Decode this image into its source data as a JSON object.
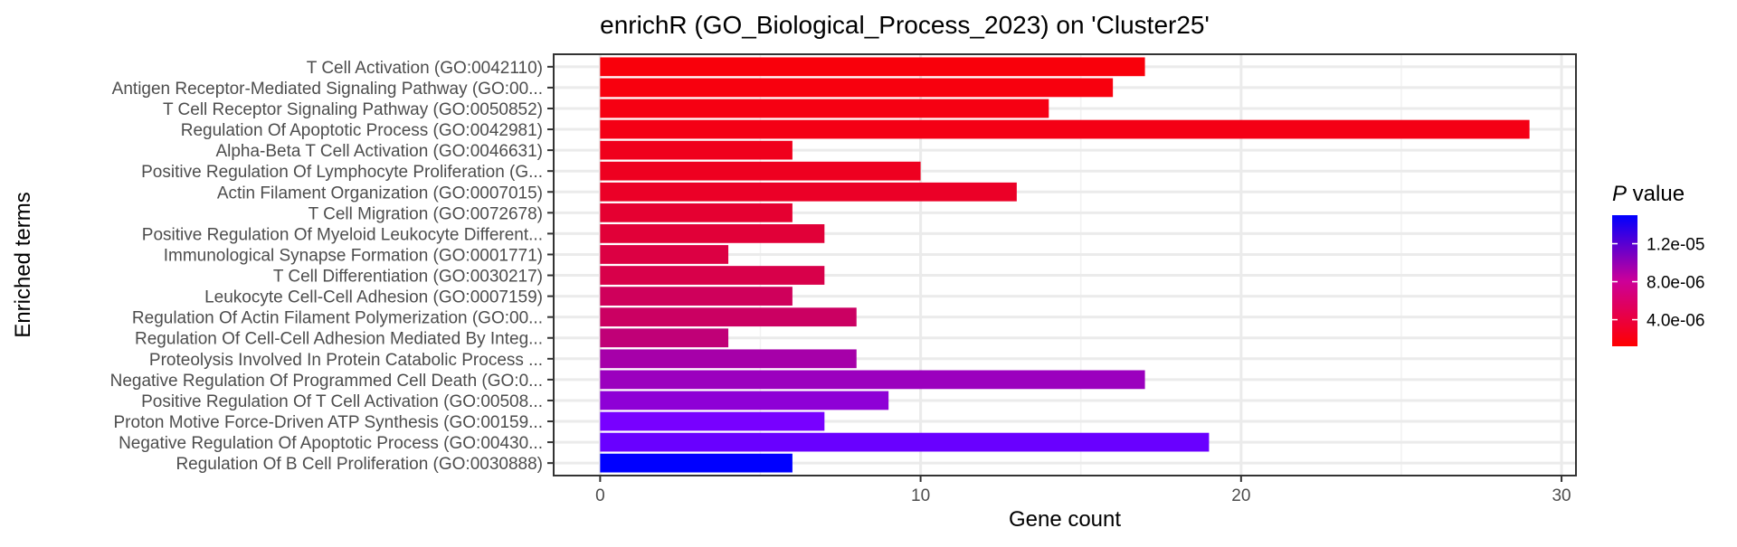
{
  "chart_data": {
    "type": "bar",
    "orientation": "horizontal",
    "title": "enrichR (GO_Biological_Process_2023) on 'Cluster25'",
    "xlabel": "Gene count",
    "ylabel": "Enriched terms",
    "xlim": [
      -1.45,
      30.45
    ],
    "xticks": [
      0,
      10,
      20,
      30
    ],
    "grid": true,
    "legend": {
      "title_italic": "P",
      "title_rest": " value",
      "placement": "right",
      "type": "colorbar",
      "low_color": "#FF0000",
      "high_color": "#0000FF",
      "range": [
        1.2e-06,
        1.5e-05
      ],
      "tick_values": [
        4e-06,
        8e-06,
        1.2e-05
      ],
      "tick_labels": [
        "4.0e-06",
        "8.0e-06",
        "1.2e-05"
      ]
    },
    "categories": [
      "T Cell Activation (GO:0042110)",
      "Antigen Receptor-Mediated Signaling Pathway (GO:00...",
      "T Cell Receptor Signaling Pathway (GO:0050852)",
      "Regulation Of Apoptotic Process (GO:0042981)",
      "Alpha-Beta T Cell Activation (GO:0046631)",
      "Positive Regulation Of Lymphocyte Proliferation (G...",
      "Actin Filament Organization (GO:0007015)",
      "T Cell Migration (GO:0072678)",
      "Positive Regulation Of Myeloid Leukocyte Different...",
      "Immunological Synapse Formation (GO:0001771)",
      "T Cell Differentiation (GO:0030217)",
      "Leukocyte Cell-Cell Adhesion (GO:0007159)",
      "Regulation Of Actin Filament Polymerization (GO:00...",
      "Regulation Of Cell-Cell Adhesion Mediated By Integ...",
      "Proteolysis Involved In Protein Catabolic Process ...",
      "Negative Regulation Of Programmed Cell Death (GO:0...",
      "Positive Regulation Of T Cell Activation (GO:00508...",
      "Proton Motive Force-Driven ATP Synthesis (GO:00159...",
      "Negative Regulation Of Apoptotic Process (GO:00430...",
      "Regulation Of B Cell Proliferation (GO:0030888)"
    ],
    "values": [
      17,
      16,
      14,
      29,
      6,
      10,
      13,
      6,
      7,
      4,
      7,
      6,
      8,
      4,
      8,
      17,
      9,
      7,
      19,
      6
    ],
    "p_values": [
      1.5e-06,
      1.6e-06,
      1.7e-06,
      1.8e-06,
      2e-06,
      2.1e-06,
      2.3e-06,
      2.6e-06,
      2.8e-06,
      3.1e-06,
      3.3e-06,
      3.8e-06,
      4e-06,
      4.6e-06,
      6e-06,
      6.6e-06,
      7.3e-06,
      8.5e-06,
      9.3e-06,
      1.5e-05
    ]
  }
}
